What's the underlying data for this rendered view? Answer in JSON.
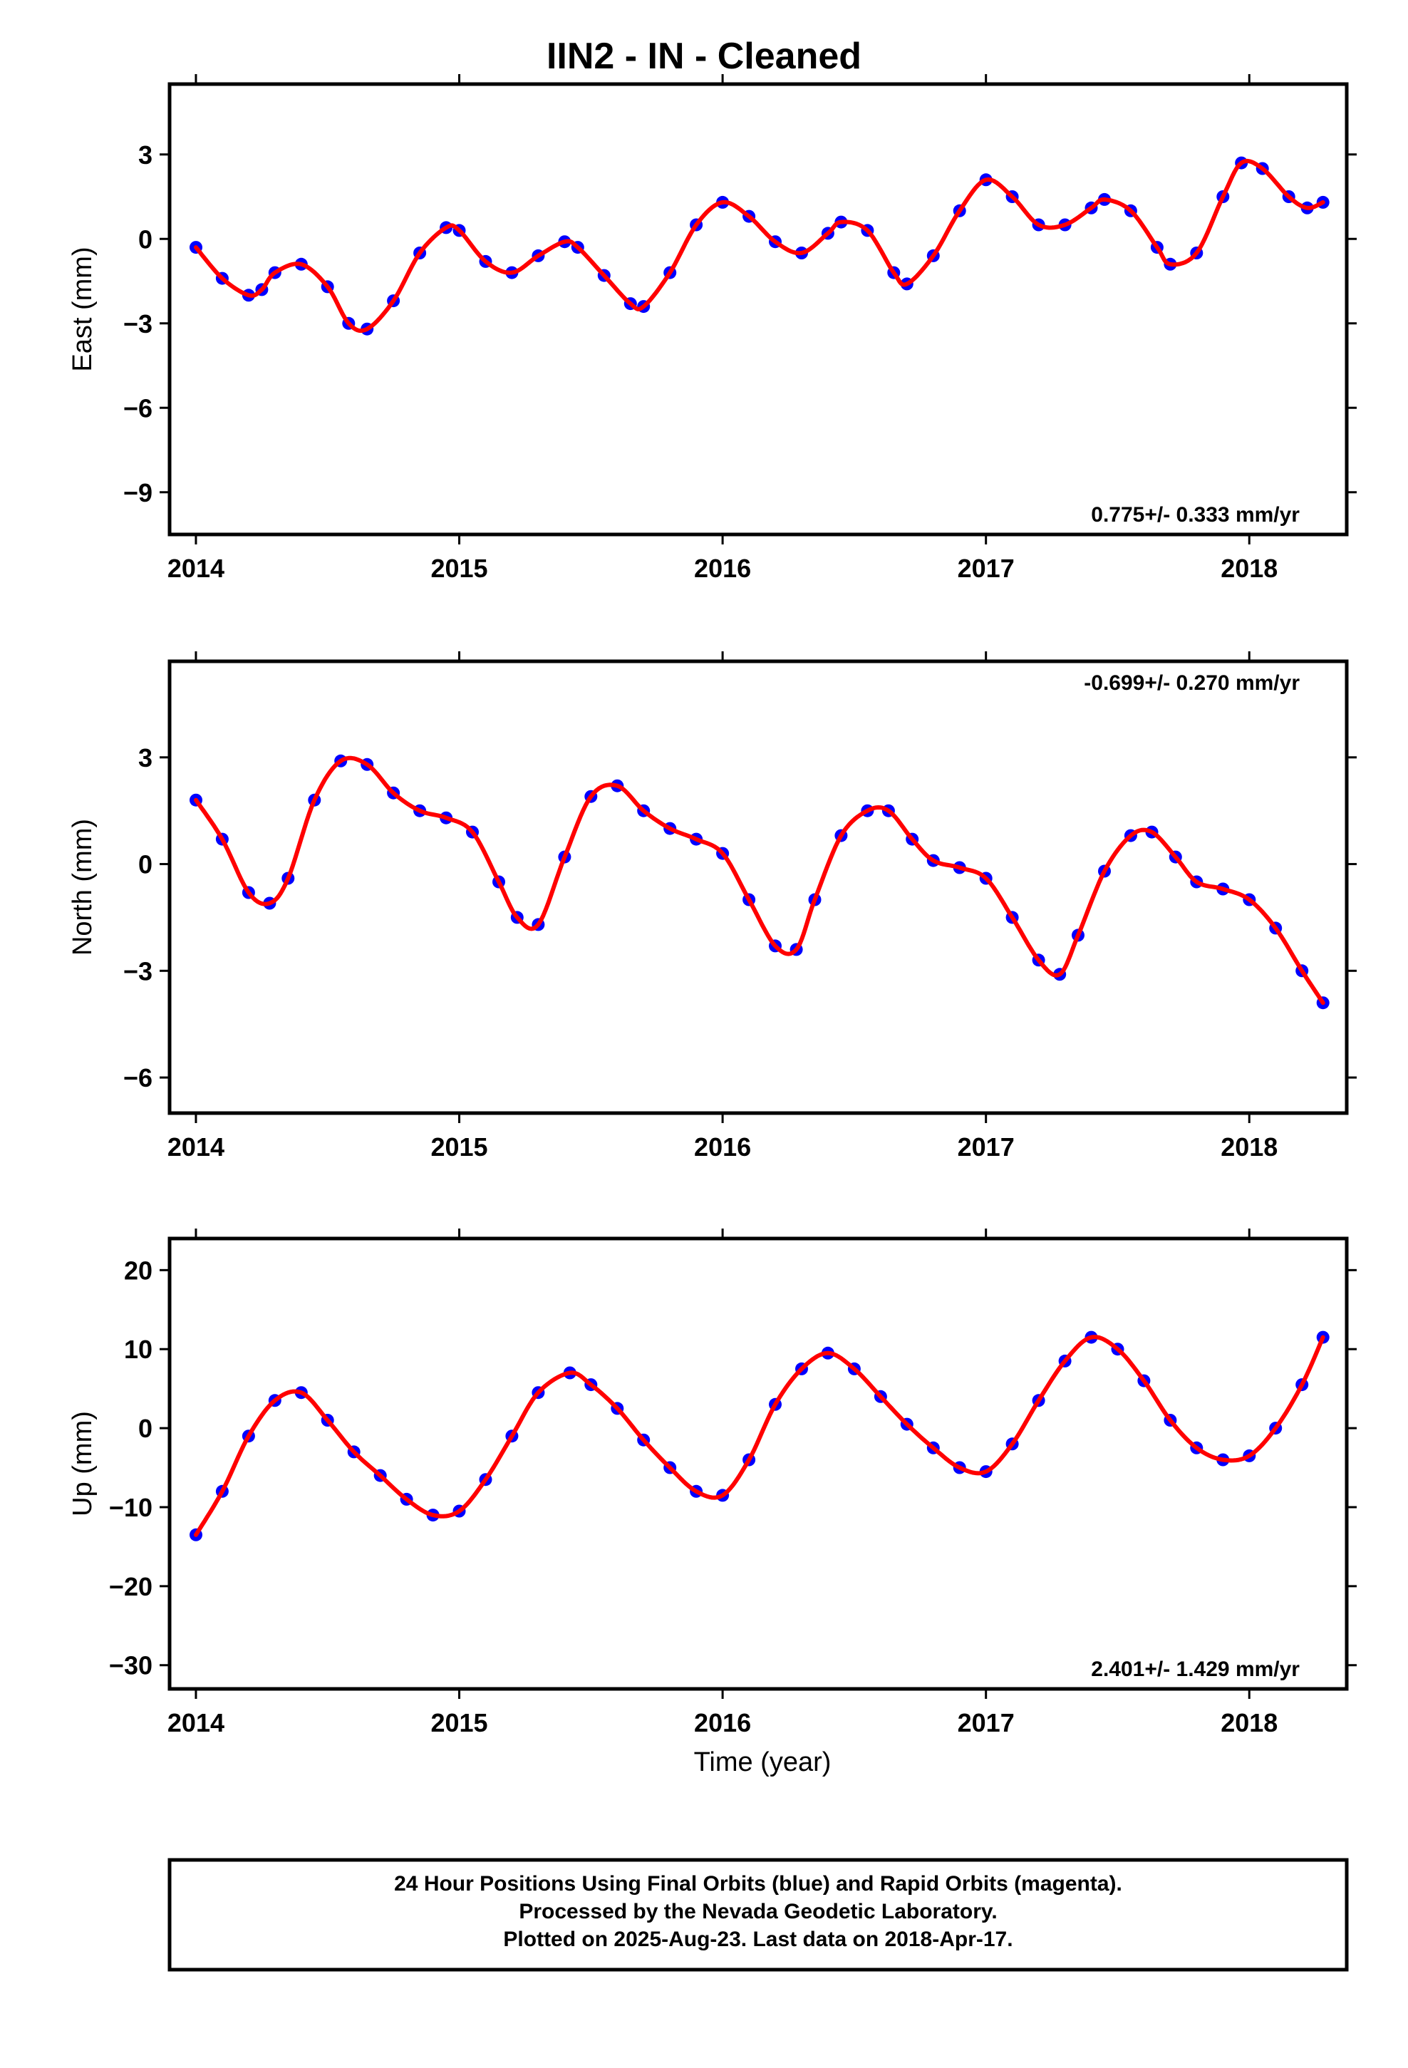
{
  "figure": {
    "title": "IIN2  - IN - Cleaned",
    "xlabel": "Time (year)",
    "footer": [
      "24 Hour Positions Using Final Orbits (blue) and Rapid Orbits (magenta).",
      "Processed by the Nevada Geodetic Laboratory.",
      "Plotted on 2025-Aug-23. Last data on 2018-Apr-17."
    ],
    "colors": {
      "points": "#0000ff",
      "fit": "#ff0000",
      "frame": "#000000"
    }
  },
  "chart_data": [
    {
      "type": "scatter",
      "component": "east",
      "ylabel": "East (mm)",
      "xlim": [
        2013.9,
        2018.37
      ],
      "ylim": [
        -10.5,
        5.5
      ],
      "xticks": [
        2014,
        2015,
        2016,
        2017,
        2018
      ],
      "xtick_labels": [
        "2014",
        "2015",
        "2016",
        "2017",
        "2018"
      ],
      "yticks": [
        -9,
        -6,
        -3,
        0,
        3
      ],
      "ytick_labels": [
        "−9",
        "−6",
        "−3",
        "0",
        "3"
      ],
      "rate_label": "0.775+/- 0.333 mm/yr",
      "rate_position": "bottom-right",
      "grid": false,
      "series": [
        {
          "x": [
            2014.0,
            2014.1,
            2014.2,
            2014.25,
            2014.3,
            2014.4,
            2014.5,
            2014.58,
            2014.65,
            2014.75,
            2014.85,
            2014.95,
            2015.0,
            2015.1,
            2015.2,
            2015.3,
            2015.4,
            2015.45,
            2015.55,
            2015.65,
            2015.7,
            2015.8,
            2015.9,
            2016.0,
            2016.1,
            2016.2,
            2016.3,
            2016.4,
            2016.45,
            2016.55,
            2016.65,
            2016.7,
            2016.8,
            2016.9,
            2017.0,
            2017.1,
            2017.2,
            2017.3,
            2017.4,
            2017.45,
            2017.55,
            2017.65,
            2017.7,
            2017.8,
            2017.9,
            2017.97,
            2018.05,
            2018.15,
            2018.22,
            2018.28
          ],
          "y": [
            -0.3,
            -1.4,
            -2.0,
            -1.8,
            -1.2,
            -0.9,
            -1.7,
            -3.0,
            -3.2,
            -2.2,
            -0.5,
            0.4,
            0.3,
            -0.8,
            -1.2,
            -0.6,
            -0.1,
            -0.3,
            -1.3,
            -2.3,
            -2.4,
            -1.2,
            0.5,
            1.3,
            0.8,
            -0.1,
            -0.5,
            0.2,
            0.6,
            0.3,
            -1.2,
            -1.6,
            -0.6,
            1.0,
            2.1,
            1.5,
            0.5,
            0.5,
            1.1,
            1.4,
            1.0,
            -0.3,
            -0.9,
            -0.5,
            1.5,
            2.7,
            2.5,
            1.5,
            1.1,
            1.3
          ]
        }
      ],
      "fit": [
        {
          "x": [
            2014.0,
            2014.1,
            2014.2,
            2014.25,
            2014.3,
            2014.4,
            2014.5,
            2014.58,
            2014.65,
            2014.75,
            2014.85,
            2014.95,
            2015.0,
            2015.1,
            2015.2,
            2015.3,
            2015.4,
            2015.45,
            2015.55,
            2015.65,
            2015.7,
            2015.8,
            2015.9,
            2016.0,
            2016.1,
            2016.2,
            2016.3,
            2016.4,
            2016.45,
            2016.55,
            2016.65,
            2016.7,
            2016.8,
            2016.9,
            2017.0,
            2017.1,
            2017.2,
            2017.3,
            2017.4,
            2017.45,
            2017.55,
            2017.65,
            2017.7,
            2017.8,
            2017.9,
            2017.97,
            2018.05,
            2018.15,
            2018.22,
            2018.28
          ],
          "y": [
            -0.3,
            -1.4,
            -2.0,
            -1.8,
            -1.2,
            -0.9,
            -1.7,
            -3.0,
            -3.2,
            -2.2,
            -0.5,
            0.4,
            0.3,
            -0.8,
            -1.2,
            -0.6,
            -0.1,
            -0.3,
            -1.3,
            -2.3,
            -2.4,
            -1.2,
            0.5,
            1.3,
            0.8,
            -0.1,
            -0.5,
            0.2,
            0.6,
            0.3,
            -1.2,
            -1.6,
            -0.6,
            1.0,
            2.1,
            1.5,
            0.5,
            0.5,
            1.1,
            1.4,
            1.0,
            -0.3,
            -0.9,
            -0.5,
            1.5,
            2.7,
            2.5,
            1.5,
            1.1,
            1.3
          ]
        }
      ]
    },
    {
      "type": "scatter",
      "component": "north",
      "ylabel": "North (mm)",
      "xlim": [
        2013.9,
        2018.37
      ],
      "ylim": [
        -7.0,
        5.7
      ],
      "xticks": [
        2014,
        2015,
        2016,
        2017,
        2018
      ],
      "xtick_labels": [
        "2014",
        "2015",
        "2016",
        "2017",
        "2018"
      ],
      "yticks": [
        -6,
        -3,
        0,
        3
      ],
      "ytick_labels": [
        "−6",
        "−3",
        "0",
        "3"
      ],
      "rate_label": "-0.699+/- 0.270 mm/yr",
      "rate_position": "top-right",
      "grid": false,
      "series": [
        {
          "x": [
            2014.0,
            2014.1,
            2014.2,
            2014.28,
            2014.35,
            2014.45,
            2014.55,
            2014.65,
            2014.75,
            2014.85,
            2014.95,
            2015.05,
            2015.15,
            2015.22,
            2015.3,
            2015.4,
            2015.5,
            2015.6,
            2015.7,
            2015.8,
            2015.9,
            2016.0,
            2016.1,
            2016.2,
            2016.28,
            2016.35,
            2016.45,
            2016.55,
            2016.63,
            2016.72,
            2016.8,
            2016.9,
            2017.0,
            2017.1,
            2017.2,
            2017.28,
            2017.35,
            2017.45,
            2017.55,
            2017.63,
            2017.72,
            2017.8,
            2017.9,
            2018.0,
            2018.1,
            2018.2,
            2018.28
          ],
          "y": [
            1.8,
            0.7,
            -0.8,
            -1.1,
            -0.4,
            1.8,
            2.9,
            2.8,
            2.0,
            1.5,
            1.3,
            0.9,
            -0.5,
            -1.5,
            -1.7,
            0.2,
            1.9,
            2.2,
            1.5,
            1.0,
            0.7,
            0.3,
            -1.0,
            -2.3,
            -2.4,
            -1.0,
            0.8,
            1.5,
            1.5,
            0.7,
            0.1,
            -0.1,
            -0.4,
            -1.5,
            -2.7,
            -3.1,
            -2.0,
            -0.2,
            0.8,
            0.9,
            0.2,
            -0.5,
            -0.7,
            -1.0,
            -1.8,
            -3.0,
            -3.9
          ]
        }
      ],
      "fit": [
        {
          "x": [
            2014.0,
            2014.1,
            2014.2,
            2014.28,
            2014.35,
            2014.45,
            2014.55,
            2014.65,
            2014.75,
            2014.85,
            2014.95,
            2015.05,
            2015.15,
            2015.22,
            2015.3,
            2015.4,
            2015.5,
            2015.6,
            2015.7,
            2015.8,
            2015.9,
            2016.0,
            2016.1,
            2016.2,
            2016.28,
            2016.35,
            2016.45,
            2016.55,
            2016.63,
            2016.72,
            2016.8,
            2016.9,
            2017.0,
            2017.1,
            2017.2,
            2017.28,
            2017.35,
            2017.45,
            2017.55,
            2017.63,
            2017.72,
            2017.8,
            2017.9,
            2018.0,
            2018.1,
            2018.2,
            2018.28
          ],
          "y": [
            1.8,
            0.7,
            -0.8,
            -1.1,
            -0.4,
            1.8,
            2.9,
            2.8,
            2.0,
            1.5,
            1.3,
            0.9,
            -0.5,
            -1.5,
            -1.7,
            0.2,
            1.9,
            2.2,
            1.5,
            1.0,
            0.7,
            0.3,
            -1.0,
            -2.3,
            -2.4,
            -1.0,
            0.8,
            1.5,
            1.5,
            0.7,
            0.1,
            -0.1,
            -0.4,
            -1.5,
            -2.7,
            -3.1,
            -2.0,
            -0.2,
            0.8,
            0.9,
            0.2,
            -0.5,
            -0.7,
            -1.0,
            -1.8,
            -3.0,
            -3.9
          ]
        }
      ]
    },
    {
      "type": "scatter",
      "component": "up",
      "ylabel": "Up (mm)",
      "xlim": [
        2013.9,
        2018.37
      ],
      "ylim": [
        -33.0,
        24.0
      ],
      "xticks": [
        2014,
        2015,
        2016,
        2017,
        2018
      ],
      "xtick_labels": [
        "2014",
        "2015",
        "2016",
        "2017",
        "2018"
      ],
      "yticks": [
        -30,
        -20,
        -10,
        0,
        10,
        20
      ],
      "ytick_labels": [
        "−30",
        "−20",
        "−10",
        "0",
        "10",
        "20"
      ],
      "rate_label": "2.401+/- 1.429 mm/yr",
      "rate_position": "bottom-right",
      "grid": false,
      "series": [
        {
          "x": [
            2014.0,
            2014.1,
            2014.2,
            2014.3,
            2014.4,
            2014.5,
            2014.6,
            2014.7,
            2014.8,
            2014.9,
            2015.0,
            2015.1,
            2015.2,
            2015.3,
            2015.42,
            2015.5,
            2015.6,
            2015.7,
            2015.8,
            2015.9,
            2016.0,
            2016.1,
            2016.2,
            2016.3,
            2016.4,
            2016.5,
            2016.6,
            2016.7,
            2016.8,
            2016.9,
            2017.0,
            2017.1,
            2017.2,
            2017.3,
            2017.4,
            2017.5,
            2017.6,
            2017.7,
            2017.8,
            2017.9,
            2018.0,
            2018.1,
            2018.2,
            2018.28
          ],
          "y": [
            -13.5,
            -8.0,
            -1.0,
            3.5,
            4.5,
            1.0,
            -3.0,
            -6.0,
            -9.0,
            -11.0,
            -10.5,
            -6.5,
            -1.0,
            4.5,
            7.0,
            5.5,
            2.5,
            -1.5,
            -5.0,
            -8.0,
            -8.5,
            -4.0,
            3.0,
            7.5,
            9.5,
            7.5,
            4.0,
            0.5,
            -2.5,
            -5.0,
            -5.5,
            -2.0,
            3.5,
            8.5,
            11.5,
            10.0,
            6.0,
            1.0,
            -2.5,
            -4.0,
            -3.5,
            0.0,
            5.5,
            11.5
          ]
        }
      ],
      "fit": [
        {
          "x": [
            2014.0,
            2014.1,
            2014.2,
            2014.3,
            2014.4,
            2014.5,
            2014.6,
            2014.7,
            2014.8,
            2014.9,
            2015.0,
            2015.1,
            2015.2,
            2015.3,
            2015.42,
            2015.5,
            2015.6,
            2015.7,
            2015.8,
            2015.9,
            2016.0,
            2016.1,
            2016.2,
            2016.3,
            2016.4,
            2016.5,
            2016.6,
            2016.7,
            2016.8,
            2016.9,
            2017.0,
            2017.1,
            2017.2,
            2017.3,
            2017.4,
            2017.5,
            2017.6,
            2017.7,
            2017.8,
            2017.9,
            2018.0,
            2018.1,
            2018.2,
            2018.28
          ],
          "y": [
            -13.5,
            -8.0,
            -1.0,
            3.5,
            4.5,
            1.0,
            -3.0,
            -6.0,
            -9.0,
            -11.0,
            -10.5,
            -6.5,
            -1.0,
            4.5,
            7.0,
            5.5,
            2.5,
            -1.5,
            -5.0,
            -8.0,
            -8.5,
            -4.0,
            3.0,
            7.5,
            9.5,
            7.5,
            4.0,
            0.5,
            -2.5,
            -5.0,
            -5.5,
            -2.0,
            3.5,
            8.5,
            11.5,
            10.0,
            6.0,
            1.0,
            -2.5,
            -4.0,
            -3.5,
            0.0,
            5.5,
            11.5
          ]
        }
      ]
    }
  ]
}
